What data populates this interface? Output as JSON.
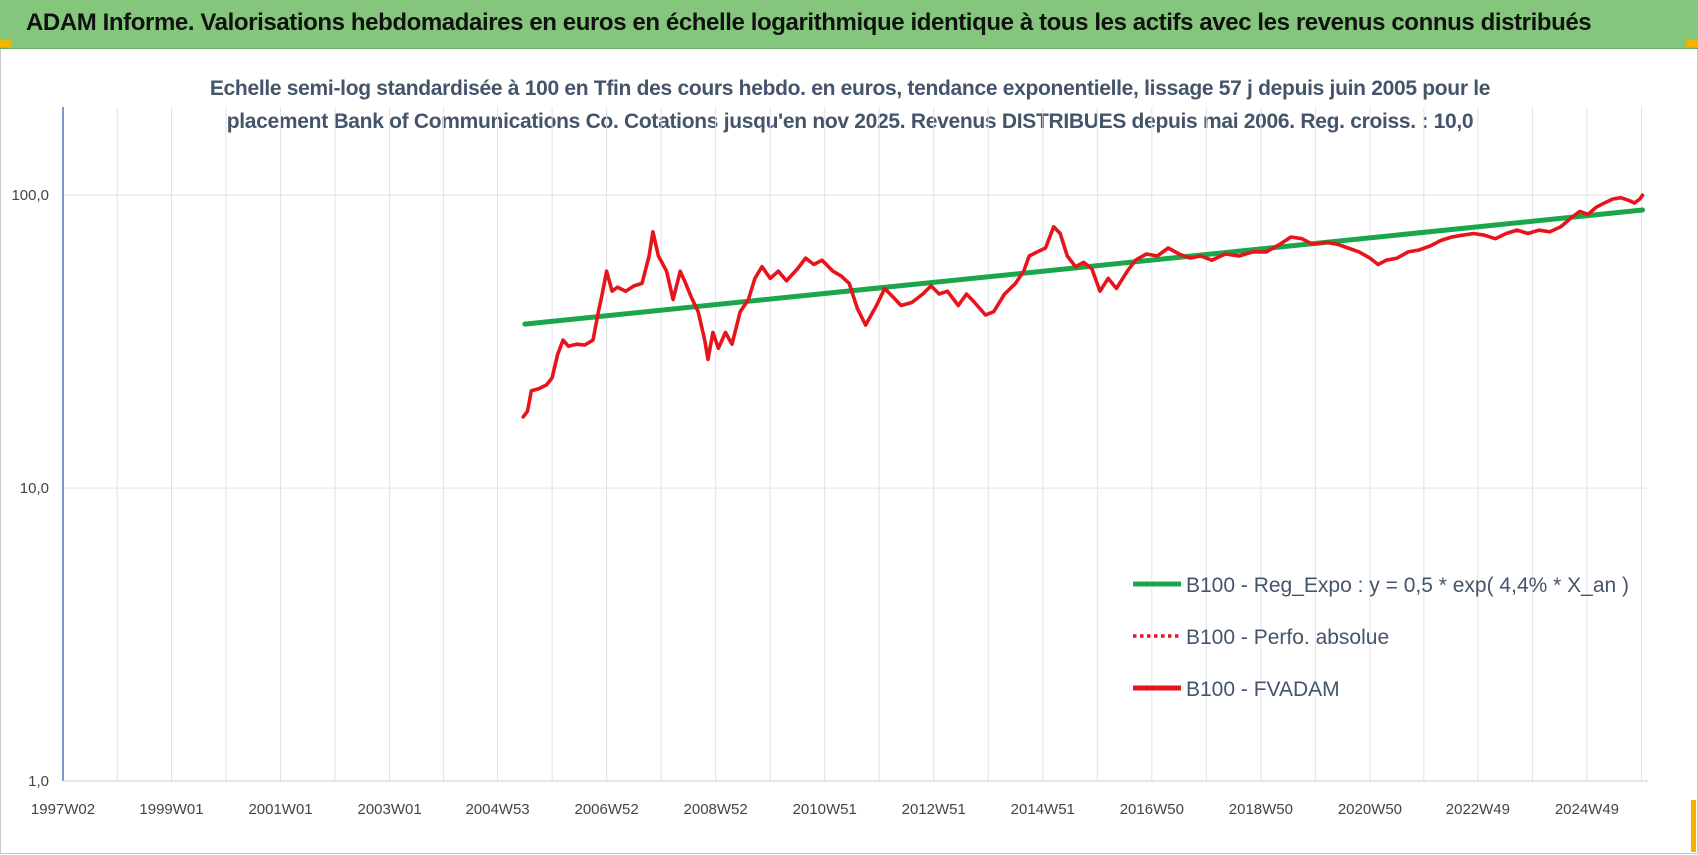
{
  "header": {
    "title": "ADAM Informe. Valorisations hebdomadaires en euros en échelle logarithmique identique à tous les actifs avec les revenus connus distribués"
  },
  "colors": {
    "banner": "#84c77c",
    "corner_accent": "#f2b400",
    "regression": "#1aa64a",
    "performance": "#e8141c",
    "axis_text": "#444444",
    "title_text": "#44546a"
  },
  "chart_data": {
    "type": "line",
    "title_lines": [
      "Echelle semi-log standardisée à 100 en Tfin des cours hebdo. en euros, tendance exponentielle, lissage 57 j depuis juin 2005 pour le",
      "placement Bank of Communications Co. Cotations jusqu'en nov 2025.  Revenus DISTRIBUES depuis mai 2006. Reg. croiss. : 10,0"
    ],
    "y_scale": "log",
    "ylim": [
      1,
      200
    ],
    "y_ticks": [
      {
        "value": 1,
        "label": "1,0"
      },
      {
        "value": 10,
        "label": "10,0"
      },
      {
        "value": 100,
        "label": "100,0"
      }
    ],
    "xlim": [
      1997.03,
      2026.1
    ],
    "x_ticks": [
      {
        "value": 1997.03,
        "label": "1997W02"
      },
      {
        "value": 1999.02,
        "label": "1999W01"
      },
      {
        "value": 2001.02,
        "label": "2001W01"
      },
      {
        "value": 2003.02,
        "label": "2003W01"
      },
      {
        "value": 2005.0,
        "label": "2004W53"
      },
      {
        "value": 2007.0,
        "label": "2006W52"
      },
      {
        "value": 2009.0,
        "label": "2008W52"
      },
      {
        "value": 2011.0,
        "label": "2010W51"
      },
      {
        "value": 2013.0,
        "label": "2012W51"
      },
      {
        "value": 2015.0,
        "label": "2014W51"
      },
      {
        "value": 2017.0,
        "label": "2016W50"
      },
      {
        "value": 2019.0,
        "label": "2018W50"
      },
      {
        "value": 2021.0,
        "label": "2020W50"
      },
      {
        "value": 2022.98,
        "label": "2022W49"
      },
      {
        "value": 2024.98,
        "label": "2024W49"
      }
    ],
    "grid": "vertical",
    "legend_position": "bottom-right",
    "series": [
      {
        "name": "B100 - Reg_Expo : y = 0,5 * exp( 4,4% *  X_an )",
        "style": "solid",
        "color": "#1aa64a",
        "points": [
          {
            "x": 2005.5,
            "y": 36.3
          },
          {
            "x": 2026.0,
            "y": 89.0
          }
        ]
      },
      {
        "name": "B100 - Perfo. absolue",
        "style": "dotted",
        "color": "#e8141c",
        "points": []
      },
      {
        "name": "B100 - FVADAM",
        "style": "solid",
        "color": "#e8141c",
        "points": [
          {
            "x": 2005.47,
            "y": 17.5
          },
          {
            "x": 2005.55,
            "y": 18.3
          },
          {
            "x": 2005.62,
            "y": 21.5
          },
          {
            "x": 2005.75,
            "y": 21.8
          },
          {
            "x": 2005.9,
            "y": 22.5
          },
          {
            "x": 2006.0,
            "y": 23.8
          },
          {
            "x": 2006.1,
            "y": 28.5
          },
          {
            "x": 2006.2,
            "y": 32.0
          },
          {
            "x": 2006.3,
            "y": 30.5
          },
          {
            "x": 2006.45,
            "y": 31.0
          },
          {
            "x": 2006.6,
            "y": 30.8
          },
          {
            "x": 2006.75,
            "y": 32.0
          },
          {
            "x": 2006.85,
            "y": 40.0
          },
          {
            "x": 2006.92,
            "y": 46.0
          },
          {
            "x": 2007.0,
            "y": 55.0
          },
          {
            "x": 2007.1,
            "y": 47.0
          },
          {
            "x": 2007.2,
            "y": 48.5
          },
          {
            "x": 2007.35,
            "y": 47.0
          },
          {
            "x": 2007.5,
            "y": 49.0
          },
          {
            "x": 2007.65,
            "y": 50.0
          },
          {
            "x": 2007.78,
            "y": 62.0
          },
          {
            "x": 2007.85,
            "y": 75.0
          },
          {
            "x": 2007.95,
            "y": 62.0
          },
          {
            "x": 2008.1,
            "y": 55.0
          },
          {
            "x": 2008.22,
            "y": 44.0
          },
          {
            "x": 2008.35,
            "y": 55.0
          },
          {
            "x": 2008.45,
            "y": 50.0
          },
          {
            "x": 2008.55,
            "y": 45.0
          },
          {
            "x": 2008.68,
            "y": 40.0
          },
          {
            "x": 2008.8,
            "y": 32.0
          },
          {
            "x": 2008.86,
            "y": 27.5
          },
          {
            "x": 2008.95,
            "y": 34.0
          },
          {
            "x": 2009.05,
            "y": 30.0
          },
          {
            "x": 2009.18,
            "y": 34.0
          },
          {
            "x": 2009.3,
            "y": 31.0
          },
          {
            "x": 2009.45,
            "y": 40.0
          },
          {
            "x": 2009.6,
            "y": 44.0
          },
          {
            "x": 2009.72,
            "y": 52.0
          },
          {
            "x": 2009.85,
            "y": 57.0
          },
          {
            "x": 2010.0,
            "y": 52.0
          },
          {
            "x": 2010.15,
            "y": 55.0
          },
          {
            "x": 2010.3,
            "y": 51.0
          },
          {
            "x": 2010.5,
            "y": 56.0
          },
          {
            "x": 2010.65,
            "y": 61.0
          },
          {
            "x": 2010.8,
            "y": 58.0
          },
          {
            "x": 2010.95,
            "y": 60.0
          },
          {
            "x": 2011.15,
            "y": 55.0
          },
          {
            "x": 2011.3,
            "y": 53.0
          },
          {
            "x": 2011.45,
            "y": 50.0
          },
          {
            "x": 2011.6,
            "y": 41.0
          },
          {
            "x": 2011.75,
            "y": 36.0
          },
          {
            "x": 2011.82,
            "y": 38.0
          },
          {
            "x": 2011.95,
            "y": 42.0
          },
          {
            "x": 2012.1,
            "y": 48.0
          },
          {
            "x": 2012.25,
            "y": 45.0
          },
          {
            "x": 2012.4,
            "y": 42.0
          },
          {
            "x": 2012.6,
            "y": 43.0
          },
          {
            "x": 2012.8,
            "y": 46.0
          },
          {
            "x": 2012.95,
            "y": 49.0
          },
          {
            "x": 2013.1,
            "y": 46.0
          },
          {
            "x": 2013.25,
            "y": 47.0
          },
          {
            "x": 2013.45,
            "y": 42.0
          },
          {
            "x": 2013.6,
            "y": 46.0
          },
          {
            "x": 2013.75,
            "y": 43.0
          },
          {
            "x": 2013.95,
            "y": 39.0
          },
          {
            "x": 2014.1,
            "y": 40.0
          },
          {
            "x": 2014.3,
            "y": 46.0
          },
          {
            "x": 2014.5,
            "y": 50.0
          },
          {
            "x": 2014.65,
            "y": 55.0
          },
          {
            "x": 2014.75,
            "y": 62.0
          },
          {
            "x": 2014.9,
            "y": 64.0
          },
          {
            "x": 2015.05,
            "y": 66.0
          },
          {
            "x": 2015.2,
            "y": 78.0
          },
          {
            "x": 2015.32,
            "y": 74.0
          },
          {
            "x": 2015.45,
            "y": 62.0
          },
          {
            "x": 2015.6,
            "y": 57.0
          },
          {
            "x": 2015.75,
            "y": 59.0
          },
          {
            "x": 2015.9,
            "y": 56.0
          },
          {
            "x": 2016.05,
            "y": 47.0
          },
          {
            "x": 2016.2,
            "y": 52.0
          },
          {
            "x": 2016.35,
            "y": 48.0
          },
          {
            "x": 2016.55,
            "y": 55.0
          },
          {
            "x": 2016.7,
            "y": 60.0
          },
          {
            "x": 2016.9,
            "y": 63.0
          },
          {
            "x": 2017.1,
            "y": 62.0
          },
          {
            "x": 2017.3,
            "y": 66.0
          },
          {
            "x": 2017.5,
            "y": 63.0
          },
          {
            "x": 2017.7,
            "y": 61.0
          },
          {
            "x": 2017.9,
            "y": 62.0
          },
          {
            "x": 2018.1,
            "y": 60.0
          },
          {
            "x": 2018.35,
            "y": 63.0
          },
          {
            "x": 2018.6,
            "y": 62.0
          },
          {
            "x": 2018.85,
            "y": 64.0
          },
          {
            "x": 2019.1,
            "y": 64.0
          },
          {
            "x": 2019.35,
            "y": 68.0
          },
          {
            "x": 2019.55,
            "y": 72.0
          },
          {
            "x": 2019.75,
            "y": 71.0
          },
          {
            "x": 2019.95,
            "y": 68.0
          },
          {
            "x": 2020.2,
            "y": 69.0
          },
          {
            "x": 2020.4,
            "y": 68.0
          },
          {
            "x": 2020.6,
            "y": 66.0
          },
          {
            "x": 2020.8,
            "y": 64.0
          },
          {
            "x": 2021.0,
            "y": 61.0
          },
          {
            "x": 2021.15,
            "y": 58.0
          },
          {
            "x": 2021.3,
            "y": 60.0
          },
          {
            "x": 2021.5,
            "y": 61.0
          },
          {
            "x": 2021.7,
            "y": 64.0
          },
          {
            "x": 2021.9,
            "y": 65.0
          },
          {
            "x": 2022.1,
            "y": 67.0
          },
          {
            "x": 2022.3,
            "y": 70.0
          },
          {
            "x": 2022.5,
            "y": 72.0
          },
          {
            "x": 2022.7,
            "y": 73.0
          },
          {
            "x": 2022.9,
            "y": 74.0
          },
          {
            "x": 2023.1,
            "y": 73.0
          },
          {
            "x": 2023.3,
            "y": 71.0
          },
          {
            "x": 2023.5,
            "y": 74.0
          },
          {
            "x": 2023.7,
            "y": 76.0
          },
          {
            "x": 2023.9,
            "y": 74.0
          },
          {
            "x": 2024.1,
            "y": 76.0
          },
          {
            "x": 2024.3,
            "y": 75.0
          },
          {
            "x": 2024.5,
            "y": 78.0
          },
          {
            "x": 2024.7,
            "y": 84.0
          },
          {
            "x": 2024.85,
            "y": 88.0
          },
          {
            "x": 2025.0,
            "y": 86.0
          },
          {
            "x": 2025.15,
            "y": 91.0
          },
          {
            "x": 2025.3,
            "y": 94.0
          },
          {
            "x": 2025.45,
            "y": 97.0
          },
          {
            "x": 2025.6,
            "y": 98.0
          },
          {
            "x": 2025.75,
            "y": 96.0
          },
          {
            "x": 2025.85,
            "y": 94.0
          },
          {
            "x": 2025.95,
            "y": 97.0
          },
          {
            "x": 2026.0,
            "y": 100.0
          }
        ]
      }
    ]
  }
}
